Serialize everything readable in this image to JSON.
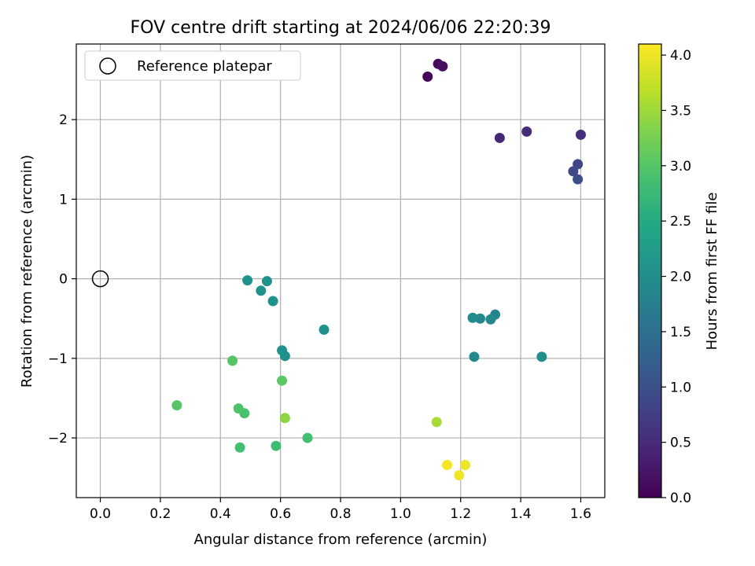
{
  "chart_data": {
    "type": "scatter",
    "title": "FOV centre drift starting at 2024/06/06 22:20:39",
    "xlabel": "Angular distance from reference (arcmin)",
    "ylabel": "Rotation from reference (arcmin)",
    "xlim": [
      -0.08,
      1.68
    ],
    "ylim": [
      -2.75,
      2.95
    ],
    "xticks": [
      0.0,
      0.2,
      0.4,
      0.6,
      0.8,
      1.0,
      1.2,
      1.4,
      1.6
    ],
    "xtick_labels": [
      "0.0",
      "0.2",
      "0.4",
      "0.6",
      "0.8",
      "1.0",
      "1.2",
      "1.4",
      "1.6"
    ],
    "yticks": [
      -2,
      -1,
      0,
      1,
      2
    ],
    "ytick_labels": [
      "−2",
      "−1",
      "0",
      "1",
      "2"
    ],
    "grid": true,
    "legend": {
      "placement": "upper-left",
      "entries": [
        "Reference platepar"
      ]
    },
    "reference_point": {
      "x": 0.0,
      "y": 0.0,
      "label": "Reference platepar",
      "marker": "open-circle"
    },
    "colorbar": {
      "label": "Hours from first FF file",
      "range": [
        0.0,
        4.1
      ],
      "ticks": [
        0.0,
        0.5,
        1.0,
        1.5,
        2.0,
        2.5,
        3.0,
        3.5,
        4.0
      ],
      "tick_labels": [
        "0.0",
        "0.5",
        "1.0",
        "1.5",
        "2.0",
        "2.5",
        "3.0",
        "3.5",
        "4.0"
      ],
      "colormap": "viridis"
    },
    "points": [
      {
        "x": 1.09,
        "y": 2.54,
        "c": 0.05
      },
      {
        "x": 1.125,
        "y": 2.7,
        "c": 0.1
      },
      {
        "x": 1.14,
        "y": 2.67,
        "c": 0.15
      },
      {
        "x": 1.33,
        "y": 1.77,
        "c": 0.45
      },
      {
        "x": 1.42,
        "y": 1.85,
        "c": 0.5
      },
      {
        "x": 1.6,
        "y": 1.81,
        "c": 0.55
      },
      {
        "x": 1.59,
        "y": 1.44,
        "c": 0.85
      },
      {
        "x": 1.575,
        "y": 1.35,
        "c": 0.9
      },
      {
        "x": 1.59,
        "y": 1.25,
        "c": 0.95
      },
      {
        "x": 1.315,
        "y": -0.45,
        "c": 1.85
      },
      {
        "x": 1.3,
        "y": -0.51,
        "c": 1.9
      },
      {
        "x": 1.265,
        "y": -0.5,
        "c": 1.9
      },
      {
        "x": 1.24,
        "y": -0.49,
        "c": 1.95
      },
      {
        "x": 1.245,
        "y": -0.98,
        "c": 1.9
      },
      {
        "x": 1.47,
        "y": -0.98,
        "c": 2.0
      },
      {
        "x": 0.745,
        "y": -0.64,
        "c": 2.05
      },
      {
        "x": 0.49,
        "y": -0.02,
        "c": 2.05
      },
      {
        "x": 0.555,
        "y": -0.03,
        "c": 2.05
      },
      {
        "x": 0.535,
        "y": -0.15,
        "c": 2.05
      },
      {
        "x": 0.575,
        "y": -0.28,
        "c": 2.05
      },
      {
        "x": 0.605,
        "y": -0.9,
        "c": 2.05
      },
      {
        "x": 0.615,
        "y": -0.97,
        "c": 2.05
      },
      {
        "x": 0.585,
        "y": -2.1,
        "c": 2.8
      },
      {
        "x": 0.465,
        "y": -2.12,
        "c": 2.85
      },
      {
        "x": 0.69,
        "y": -2.0,
        "c": 2.85
      },
      {
        "x": 0.48,
        "y": -1.69,
        "c": 2.9
      },
      {
        "x": 0.46,
        "y": -1.63,
        "c": 2.95
      },
      {
        "x": 0.44,
        "y": -1.03,
        "c": 3.0
      },
      {
        "x": 0.255,
        "y": -1.59,
        "c": 3.0
      },
      {
        "x": 0.605,
        "y": -1.28,
        "c": 3.05
      },
      {
        "x": 0.615,
        "y": -1.75,
        "c": 3.4
      },
      {
        "x": 1.12,
        "y": -1.8,
        "c": 3.55
      },
      {
        "x": 1.155,
        "y": -2.34,
        "c": 4.05
      },
      {
        "x": 1.215,
        "y": -2.34,
        "c": 4.0
      },
      {
        "x": 1.195,
        "y": -2.47,
        "c": 4.0
      }
    ]
  }
}
